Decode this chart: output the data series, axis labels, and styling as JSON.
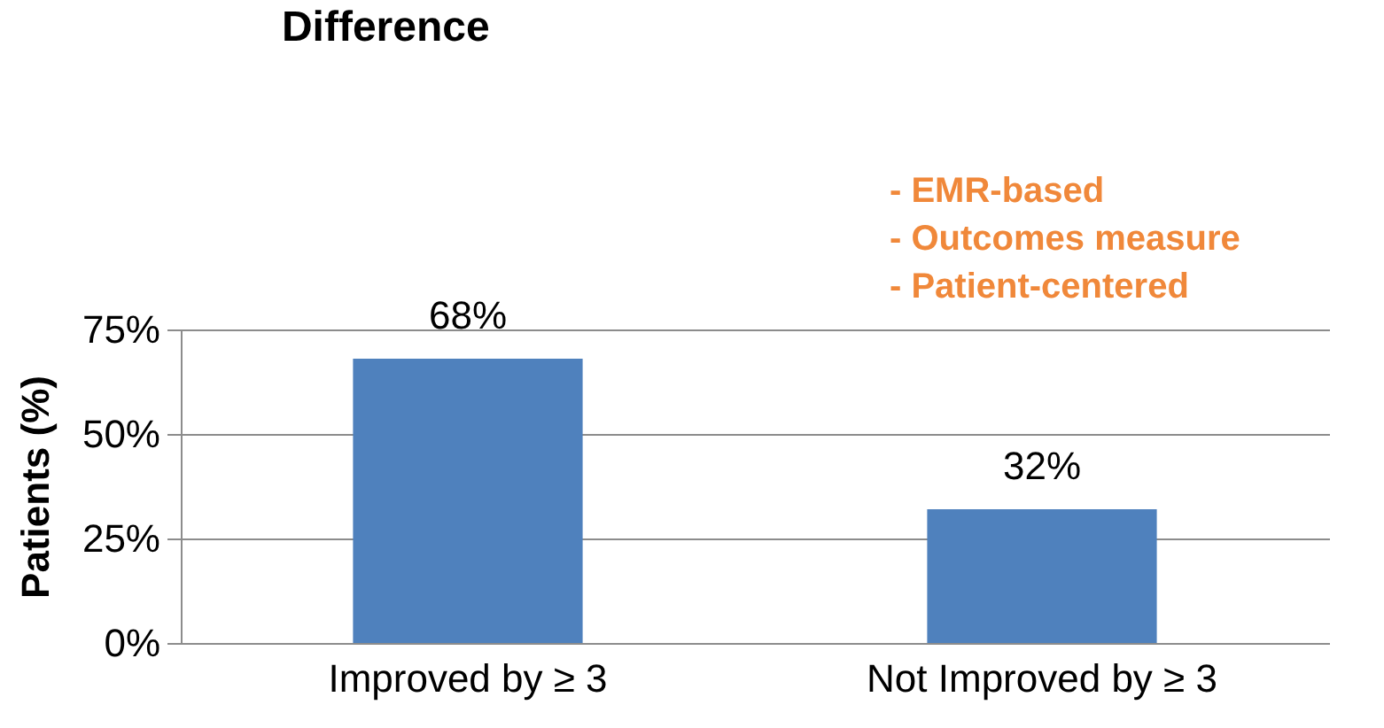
{
  "chart_data": {
    "type": "bar",
    "title": "Difference",
    "ylabel": "Patients (%)",
    "categories": [
      "Improved by ≥ 3",
      "Not Improved by ≥ 3"
    ],
    "values": [
      68,
      32
    ],
    "color": "#4f81bd",
    "value_labels": [
      "68%",
      "32%"
    ],
    "ylim": [
      0,
      75
    ],
    "yticks": [
      {
        "value": 0,
        "label": "0%"
      },
      {
        "value": 25,
        "label": "25%"
      },
      {
        "value": 50,
        "label": "50%"
      },
      {
        "value": 75,
        "label": "75%"
      }
    ],
    "grid": "y",
    "annotations": [
      "-  EMR-based",
      "-  Outcomes measure",
      "-  Patient-centered"
    ]
  }
}
